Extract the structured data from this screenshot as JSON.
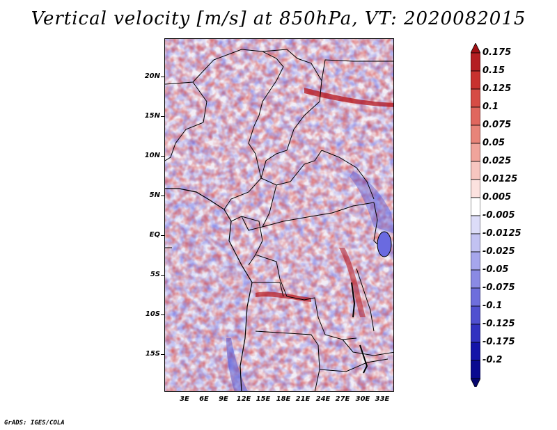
{
  "title": "Vertical velocity [m/s] at 850hPa, VT: 2020082015",
  "footer": "GrADS: IGES/COLA",
  "map": {
    "variable": "Vertical velocity",
    "units": "m/s",
    "level": "850hPa",
    "valid_time": "2020082015",
    "lat_range": [
      -19.5,
      24.5
    ],
    "lon_range": [
      0,
      34.5
    ],
    "lat_ticks": [
      {
        "value": 20,
        "label": "20N"
      },
      {
        "value": 15,
        "label": "15N"
      },
      {
        "value": 10,
        "label": "10N"
      },
      {
        "value": 5,
        "label": "5N"
      },
      {
        "value": 0,
        "label": "EQ"
      },
      {
        "value": -5,
        "label": "5S"
      },
      {
        "value": -10,
        "label": "10S"
      },
      {
        "value": -15,
        "label": "15S"
      }
    ],
    "lon_ticks": [
      {
        "value": 3,
        "label": "3E"
      },
      {
        "value": 6,
        "label": "6E"
      },
      {
        "value": 9,
        "label": "9E"
      },
      {
        "value": 12,
        "label": "12E"
      },
      {
        "value": 15,
        "label": "15E"
      },
      {
        "value": 18,
        "label": "18E"
      },
      {
        "value": 21,
        "label": "21E"
      },
      {
        "value": 24,
        "label": "24E"
      },
      {
        "value": 27,
        "label": "27E"
      },
      {
        "value": 30,
        "label": "30E"
      },
      {
        "value": 33,
        "label": "33E"
      }
    ]
  },
  "colorbar": {
    "labels": [
      "0.175",
      "0.15",
      "0.125",
      "0.1",
      "0.075",
      "0.05",
      "0.025",
      "0.0125",
      "0.005",
      "-0.005",
      "-0.0125",
      "-0.025",
      "-0.05",
      "-0.075",
      "-0.1",
      "-0.125",
      "-0.175",
      "-0.2"
    ],
    "colors": [
      "#a00f14",
      "#b41e22",
      "#c8322f",
      "#d64c45",
      "#e0675e",
      "#e88479",
      "#f0a49b",
      "#f7c6c0",
      "#fce2df",
      "#ffffff",
      "#dcdcf8",
      "#c2c2f2",
      "#a6a6ec",
      "#8a8ae4",
      "#6e6edc",
      "#5050d0",
      "#3232c0",
      "#1414a8",
      "#0a0a90",
      "#07076e"
    ]
  }
}
